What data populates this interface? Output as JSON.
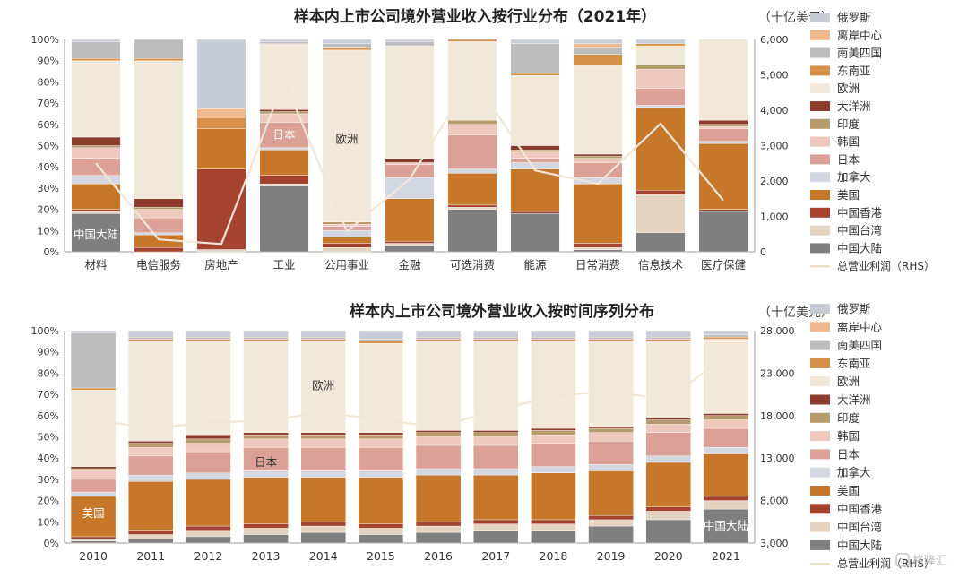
{
  "colors": {
    "中国大陆": "#7f7f7f",
    "中国台湾": "#e3d3c0",
    "中国香港": "#a5432f",
    "美国": "#c7772a",
    "加拿大": "#d2d7e2",
    "日本": "#dba196",
    "韩国": "#efc8bd",
    "印度": "#b69a6b",
    "大洋洲": "#8c3d2d",
    "欧洲": "#f2e8d9",
    "东南亚": "#d6904a",
    "南美四国": "#bcbcbc",
    "离岸中心": "#f0b88d",
    "俄罗斯": "#c8ccd7",
    "line": "#f1e6d8"
  },
  "legend": {
    "items": [
      "俄罗斯",
      "离岸中心",
      "南美四国",
      "东南亚",
      "欧洲",
      "大洋洲",
      "印度",
      "韩国",
      "日本",
      "加拿大",
      "美国",
      "中国香港",
      "中国台湾",
      "中国大陆"
    ],
    "line_label": "总营业利润（RHS）"
  },
  "chart_data": [
    {
      "type": "bar",
      "stacked": true,
      "title": "样本内上市公司境外营业收入按行业分布（2021年）",
      "right_axis_unit": "（十亿美元）",
      "categories": [
        "材料",
        "电信服务",
        "房地产",
        "工业",
        "公用事业",
        "金融",
        "可选消费",
        "能源",
        "日常消费",
        "信息技术",
        "医疗保健"
      ],
      "ylim": [
        0,
        100
      ],
      "y_ticks": [
        "0%",
        "10%",
        "20%",
        "30%",
        "40%",
        "50%",
        "60%",
        "70%",
        "80%",
        "90%",
        "100%"
      ],
      "rhs_ylim": [
        0,
        6000
      ],
      "rhs_ticks": [
        "0",
        "1,000",
        "2,000",
        "3,000",
        "4,000",
        "5,000",
        "6,000"
      ],
      "series": [
        {
          "name": "中国大陆",
          "values": [
            18,
            0,
            0,
            31,
            0,
            3,
            20,
            18,
            1,
            9,
            19
          ]
        },
        {
          "name": "中国台湾",
          "values": [
            1,
            0,
            1,
            1,
            2,
            1,
            1,
            0,
            1,
            18,
            0
          ]
        },
        {
          "name": "中国香港",
          "values": [
            1,
            2,
            36,
            4,
            2,
            1,
            1,
            1,
            2,
            2,
            1
          ]
        },
        {
          "name": "美国",
          "values": [
            12,
            6,
            18,
            12,
            3,
            20,
            15,
            20,
            28,
            39,
            31
          ]
        },
        {
          "name": "加拿大",
          "values": [
            4,
            1,
            0,
            1,
            3,
            10,
            2,
            3,
            3,
            1,
            1
          ]
        },
        {
          "name": "日本",
          "values": [
            8,
            7,
            0,
            12,
            2,
            6,
            16,
            2,
            7,
            8,
            6
          ]
        },
        {
          "name": "韩国",
          "values": [
            5,
            4,
            0,
            4,
            1,
            1,
            5,
            3,
            2,
            9,
            1
          ]
        },
        {
          "name": "印度",
          "values": [
            1,
            1,
            0,
            1,
            1,
            0,
            2,
            1,
            1,
            2,
            1
          ]
        },
        {
          "name": "大洋洲",
          "values": [
            4,
            4,
            0,
            1,
            0,
            2,
            0,
            2,
            1,
            0,
            2
          ]
        },
        {
          "name": "欧洲",
          "values": [
            36,
            65,
            0,
            31,
            81,
            53,
            37,
            33,
            42,
            9,
            38
          ]
        },
        {
          "name": "东南亚",
          "values": [
            1,
            1,
            5,
            0,
            1,
            0,
            1,
            1,
            5,
            1,
            0
          ]
        },
        {
          "name": "南美四国",
          "values": [
            8,
            9,
            0,
            1,
            2,
            2,
            0,
            14,
            3,
            0,
            0
          ]
        },
        {
          "name": "离岸中心",
          "values": [
            0,
            0,
            4,
            0,
            0,
            0,
            0,
            0,
            2,
            0,
            0
          ]
        },
        {
          "name": "俄罗斯",
          "values": [
            1,
            0,
            31,
            1,
            2,
            1,
            0,
            2,
            2,
            2,
            0
          ]
        }
      ],
      "line": {
        "name": "总营业利润（RHS）",
        "values": [
          2500,
          350,
          220,
          4850,
          580,
          2050,
          4930,
          2300,
          1920,
          3620,
          1450
        ]
      },
      "bar_labels": [
        {
          "text": "中国大陆",
          "category": 0,
          "value": 8,
          "color": "#ffffff"
        },
        {
          "text": "日本",
          "category": 3,
          "value": 55,
          "color": "#ffffff"
        },
        {
          "text": "欧洲",
          "category": 4,
          "value": 53,
          "color": "#333333"
        }
      ]
    },
    {
      "type": "bar",
      "stacked": true,
      "title": "样本内上市公司境外营业收入按时间序列分布",
      "right_axis_unit": "（十亿美元）",
      "categories": [
        "2010",
        "2011",
        "2012",
        "2013",
        "2014",
        "2015",
        "2016",
        "2017",
        "2018",
        "2019",
        "2020",
        "2021"
      ],
      "ylim": [
        0,
        100
      ],
      "y_ticks": [
        "0%",
        "10%",
        "20%",
        "30%",
        "40%",
        "50%",
        "60%",
        "70%",
        "80%",
        "90%",
        "100%"
      ],
      "rhs_ylim": [
        3000,
        28000
      ],
      "rhs_ticks": [
        "3,000",
        "8,000",
        "13,000",
        "18,000",
        "23,000",
        "28,000"
      ],
      "series": [
        {
          "name": "中国大陆",
          "values": [
            1,
            2,
            3,
            4,
            5,
            4,
            5,
            6,
            6,
            8,
            11,
            16
          ]
        },
        {
          "name": "中国台湾",
          "values": [
            1,
            2,
            3,
            3,
            3,
            3,
            3,
            3,
            3,
            3,
            4,
            4
          ]
        },
        {
          "name": "中国香港",
          "values": [
            1,
            2,
            2,
            2,
            2,
            2,
            2,
            2,
            2,
            2,
            2,
            2
          ]
        },
        {
          "name": "美国",
          "values": [
            19,
            23,
            22,
            22,
            21,
            22,
            22,
            21,
            22,
            21,
            21,
            20
          ]
        },
        {
          "name": "加拿大",
          "values": [
            2,
            3,
            3,
            3,
            3,
            3,
            3,
            3,
            3,
            3,
            3,
            3
          ]
        },
        {
          "name": "日本",
          "values": [
            6,
            9,
            10,
            11,
            11,
            11,
            11,
            11,
            11,
            11,
            11,
            9
          ]
        },
        {
          "name": "韩国",
          "values": [
            4,
            4,
            4,
            4,
            4,
            4,
            4,
            4,
            4,
            4,
            4,
            4
          ]
        },
        {
          "name": "印度",
          "values": [
            1,
            2,
            2,
            2,
            2,
            2,
            2,
            2,
            2,
            2,
            2,
            2
          ]
        },
        {
          "name": "大洋洲",
          "values": [
            1,
            1,
            2,
            1,
            1,
            1,
            1,
            1,
            1,
            1,
            1,
            1
          ]
        },
        {
          "name": "欧洲",
          "values": [
            36,
            47,
            44,
            43,
            43,
            42,
            42,
            42,
            41,
            40,
            36,
            35
          ]
        },
        {
          "name": "东南亚",
          "values": [
            1,
            1,
            1,
            1,
            1,
            1,
            1,
            1,
            1,
            1,
            1,
            1
          ]
        },
        {
          "name": "南美四国",
          "values": [
            26,
            1,
            1,
            1,
            1,
            1,
            1,
            1,
            1,
            1,
            1,
            1
          ]
        },
        {
          "name": "离岸中心",
          "values": [
            0,
            0,
            0,
            0,
            0,
            0,
            0,
            0,
            0,
            0,
            0,
            0
          ]
        },
        {
          "name": "俄罗斯",
          "values": [
            1,
            3,
            3,
            3,
            3,
            4,
            3,
            3,
            3,
            3,
            3,
            2
          ]
        }
      ],
      "line": {
        "name": "总营业利润（RHS）",
        "values": [
          17500,
          16500,
          17200,
          17400,
          18400,
          17500,
          16700,
          18600,
          20300,
          20900,
          19800,
          25200
        ]
      },
      "bar_labels": [
        {
          "text": "美国",
          "category": 0,
          "value": 14,
          "color": "#ffffff"
        },
        {
          "text": "日本",
          "category": 3,
          "value": 38,
          "color": "#333333"
        },
        {
          "text": "欧洲",
          "category": 4,
          "value": 74,
          "color": "#333333"
        },
        {
          "text": "中国大陆",
          "category": 11,
          "value": 8,
          "color": "#ffffff"
        }
      ]
    }
  ],
  "watermark": "格隆汇"
}
